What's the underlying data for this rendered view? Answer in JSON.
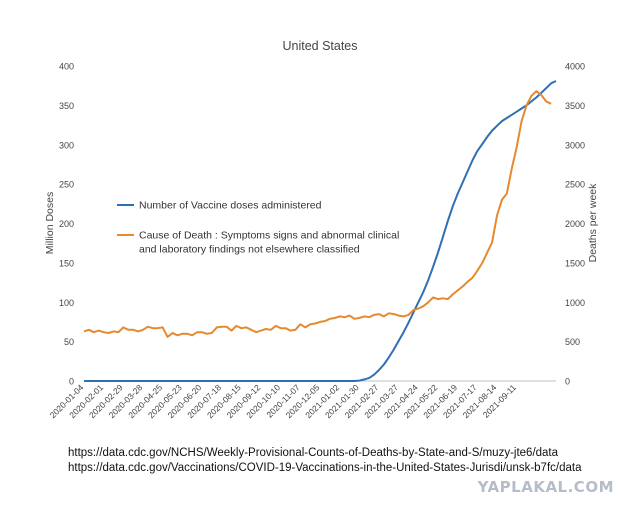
{
  "chart_data": {
    "type": "line",
    "title": "United States",
    "ylabel": "Million Doses",
    "y2label": "Deaths per week",
    "ylim": [
      0,
      400
    ],
    "y2lim": [
      0,
      4000
    ],
    "yticks": [
      "0",
      "50",
      "100",
      "150",
      "200",
      "250",
      "300",
      "350",
      "400"
    ],
    "y2ticks": [
      "0",
      "500",
      "1000",
      "1500",
      "2000",
      "2500",
      "3000",
      "3500",
      "4000"
    ],
    "x_tick_labels": [
      "2020-01-04",
      "2020-02-01",
      "2020-02-29",
      "2020-03-28",
      "2020-04-25",
      "2020-05-23",
      "2020-06-20",
      "2020-07-18",
      "2020-08-15",
      "2020-09-12",
      "2020-10-10",
      "2020-11-07",
      "2020-12-05",
      "2021-01-02",
      "2021-01-30",
      "2021-02-27",
      "2021-03-27",
      "2021-04-24",
      "2021-05-22",
      "2021-06-19",
      "2021-07-17",
      "2021-08-14",
      "2021-09-11"
    ],
    "x_start": "2020-01-04",
    "x_step_days": 7,
    "grid": false,
    "legend_position": "center-left",
    "series": [
      {
        "name": "Number of Vaccine doses administered",
        "axis": "left",
        "color": "#2e6fb5",
        "values": [
          0,
          0,
          0,
          0,
          0,
          0,
          0,
          0,
          0,
          0,
          0,
          0,
          0,
          0,
          0,
          0,
          0,
          0,
          0,
          0,
          0,
          0,
          0,
          0,
          0,
          0,
          0,
          0,
          0,
          0,
          0,
          0,
          0,
          0,
          0,
          0,
          0,
          0,
          0,
          0,
          0,
          0,
          0,
          0,
          0,
          0,
          0,
          0,
          0,
          0,
          0,
          0,
          0,
          0,
          0,
          0,
          0.5,
          2,
          4,
          8,
          14,
          21,
          30,
          40,
          51,
          62,
          74,
          87,
          100,
          113,
          128,
          145,
          163,
          183,
          203,
          222,
          238,
          252,
          266,
          280,
          292,
          301,
          310,
          318,
          324,
          330,
          334,
          338,
          342,
          346,
          350,
          355,
          360,
          366,
          372,
          378,
          381
        ]
      },
      {
        "name": "Cause of Death : Symptoms signs and abnormal clinical and laboratory findings not elsewhere classified",
        "axis": "right",
        "color": "#e58a2e",
        "values": [
          630,
          650,
          620,
          640,
          620,
          610,
          630,
          620,
          680,
          650,
          650,
          630,
          650,
          690,
          670,
          670,
          680,
          560,
          610,
          580,
          600,
          600,
          580,
          620,
          620,
          600,
          610,
          680,
          690,
          690,
          640,
          700,
          670,
          680,
          650,
          620,
          640,
          660,
          650,
          700,
          670,
          670,
          640,
          650,
          720,
          680,
          720,
          730,
          750,
          760,
          790,
          800,
          820,
          810,
          830,
          790,
          800,
          820,
          810,
          840,
          850,
          820,
          860,
          850,
          830,
          820,
          840,
          900,
          920,
          950,
          1000,
          1060,
          1040,
          1050,
          1040,
          1100,
          1150,
          1200,
          1260,
          1310,
          1400,
          1500,
          1630,
          1760,
          2100,
          2300,
          2380,
          2700,
          2970,
          3300,
          3500,
          3620,
          3680,
          3630,
          3550,
          3520
        ]
      }
    ]
  },
  "sources": [
    "https://data.cdc.gov/NCHS/Weekly-Provisional-Counts-of-Deaths-by-State-and-S/muzy-jte6/data",
    "https://data.cdc.gov/Vaccinations/COVID-19-Vaccinations-in-the-United-States-Jurisdi/unsk-b7fc/data"
  ],
  "watermark": "YAPLAKAL.COM"
}
